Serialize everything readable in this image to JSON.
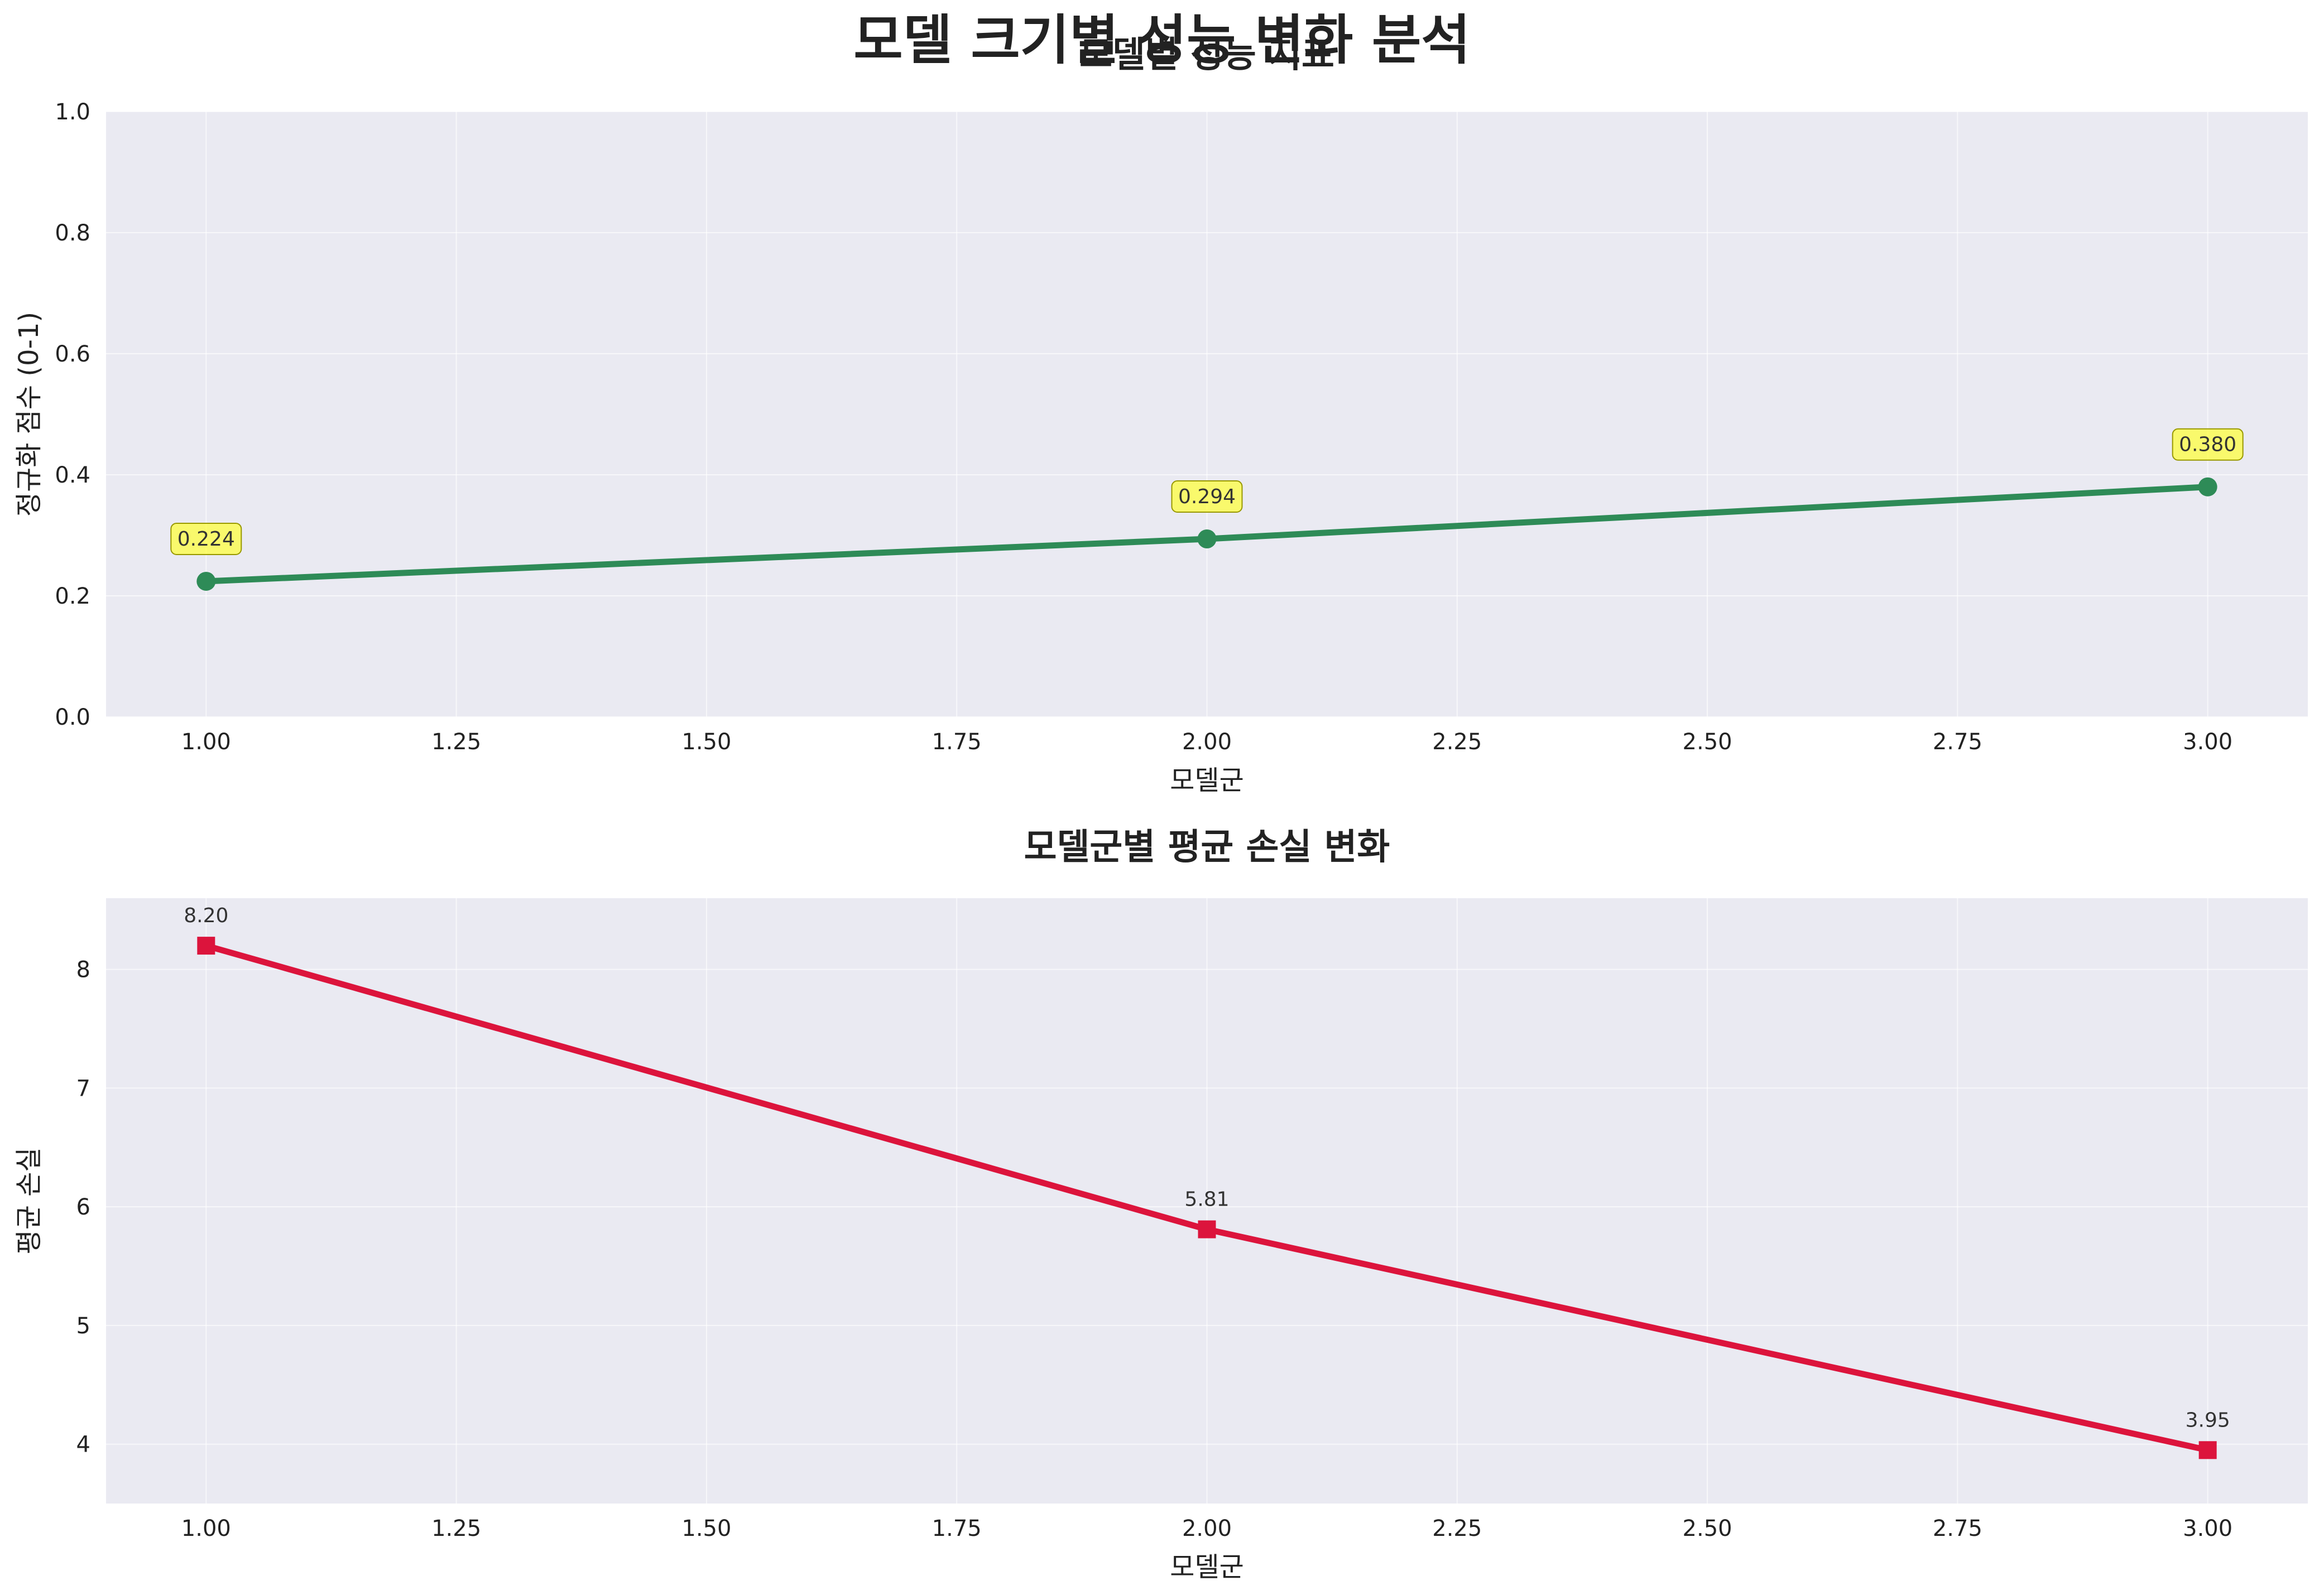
{
  "suptitle": "모델 크기별 성능 변화 분석",
  "chart_data": [
    {
      "type": "line",
      "title": "모델별 성능 지표",
      "xlabel": "모델군",
      "ylabel": "정규화 점수 (0-1)",
      "xlim": [
        0.9,
        3.1
      ],
      "ylim": [
        0.0,
        1.0
      ],
      "xticks": [
        "1.00",
        "1.25",
        "1.50",
        "1.75",
        "2.00",
        "2.25",
        "2.50",
        "2.75",
        "3.00"
      ],
      "yticks": [
        "0.0",
        "0.2",
        "0.4",
        "0.6",
        "0.8",
        "1.0"
      ],
      "grid": true,
      "series": [
        {
          "x": [
            1,
            2,
            3
          ],
          "values": [
            0.224,
            0.294,
            0.38
          ],
          "labels": [
            "0.224",
            "0.294",
            "0.380"
          ],
          "color": "#2e8b57",
          "marker": "circle"
        }
      ]
    },
    {
      "type": "line",
      "title": "모델군별 평균 손실 변화",
      "xlabel": "모델군",
      "ylabel": "평균 손실",
      "xlim": [
        0.9,
        3.1
      ],
      "ylim": [
        3.5,
        8.6
      ],
      "xticks": [
        "1.00",
        "1.25",
        "1.50",
        "1.75",
        "2.00",
        "2.25",
        "2.50",
        "2.75",
        "3.00"
      ],
      "yticks": [
        "4",
        "5",
        "6",
        "7",
        "8"
      ],
      "grid": true,
      "series": [
        {
          "x": [
            1,
            2,
            3
          ],
          "values": [
            8.2,
            5.81,
            3.95
          ],
          "labels": [
            "8.20",
            "5.81",
            "3.95"
          ],
          "color": "#dc143c",
          "marker": "square"
        }
      ]
    }
  ]
}
